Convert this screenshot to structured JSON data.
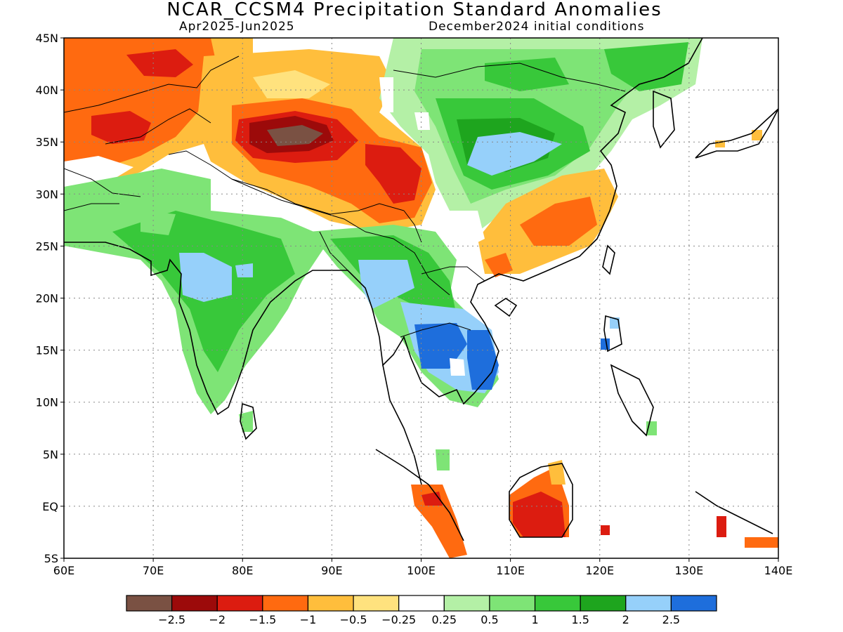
{
  "title": "NCAR_CCSM4 Precipitation Standard Anomalies",
  "subtitle_left": "Apr2025-Jun2025",
  "subtitle_right": "December2024 initial conditions",
  "lat_labels": [
    "45N",
    "40N",
    "35N",
    "30N",
    "25N",
    "20N",
    "15N",
    "10N",
    "5N",
    "EQ",
    "5S"
  ],
  "lon_labels": [
    "60E",
    "70E",
    "80E",
    "90E",
    "100E",
    "110E",
    "120E",
    "130E",
    "140E"
  ],
  "colorbar": {
    "colors": [
      "#7a5143",
      "#9c0a0a",
      "#dc1c10",
      "#ff6a10",
      "#ffbe3c",
      "#ffe27e",
      "#ffffff",
      "#b4f0a6",
      "#7ee476",
      "#38c83a",
      "#1ea51e",
      "#96d0fa",
      "#1e6edc"
    ],
    "labels": [
      "−2.5",
      "−2",
      "−1.5",
      "−1",
      "−0.5",
      "−0.25",
      "0.25",
      "0.5",
      "1",
      "1.5",
      "2",
      "2.5"
    ]
  }
}
